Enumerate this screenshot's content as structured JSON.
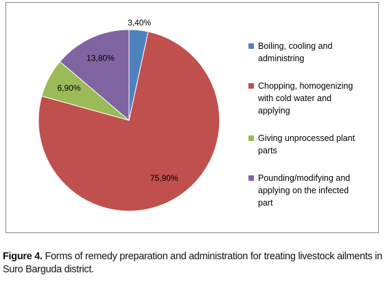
{
  "chart_data": {
    "type": "pie",
    "categories": [
      "Boiling, cooling and administring",
      "Chopping, homogenizing with cold water and applying",
      "Giving unprocessed plant parts",
      "Pounding/modifying and applying on the infected part"
    ],
    "values": [
      3.4,
      75.9,
      6.9,
      13.8
    ],
    "value_labels": [
      "3,40%",
      "75,90%",
      "6,90%",
      "13,80%"
    ],
    "colors": [
      "#4f81bd",
      "#c0504d",
      "#9bbb59",
      "#8064a2"
    ],
    "legend": "right"
  },
  "caption": {
    "label": "Figure 4.",
    "text": "Forms of remedy preparation and administration for treating livestock ailments in Suro Barguda district."
  }
}
